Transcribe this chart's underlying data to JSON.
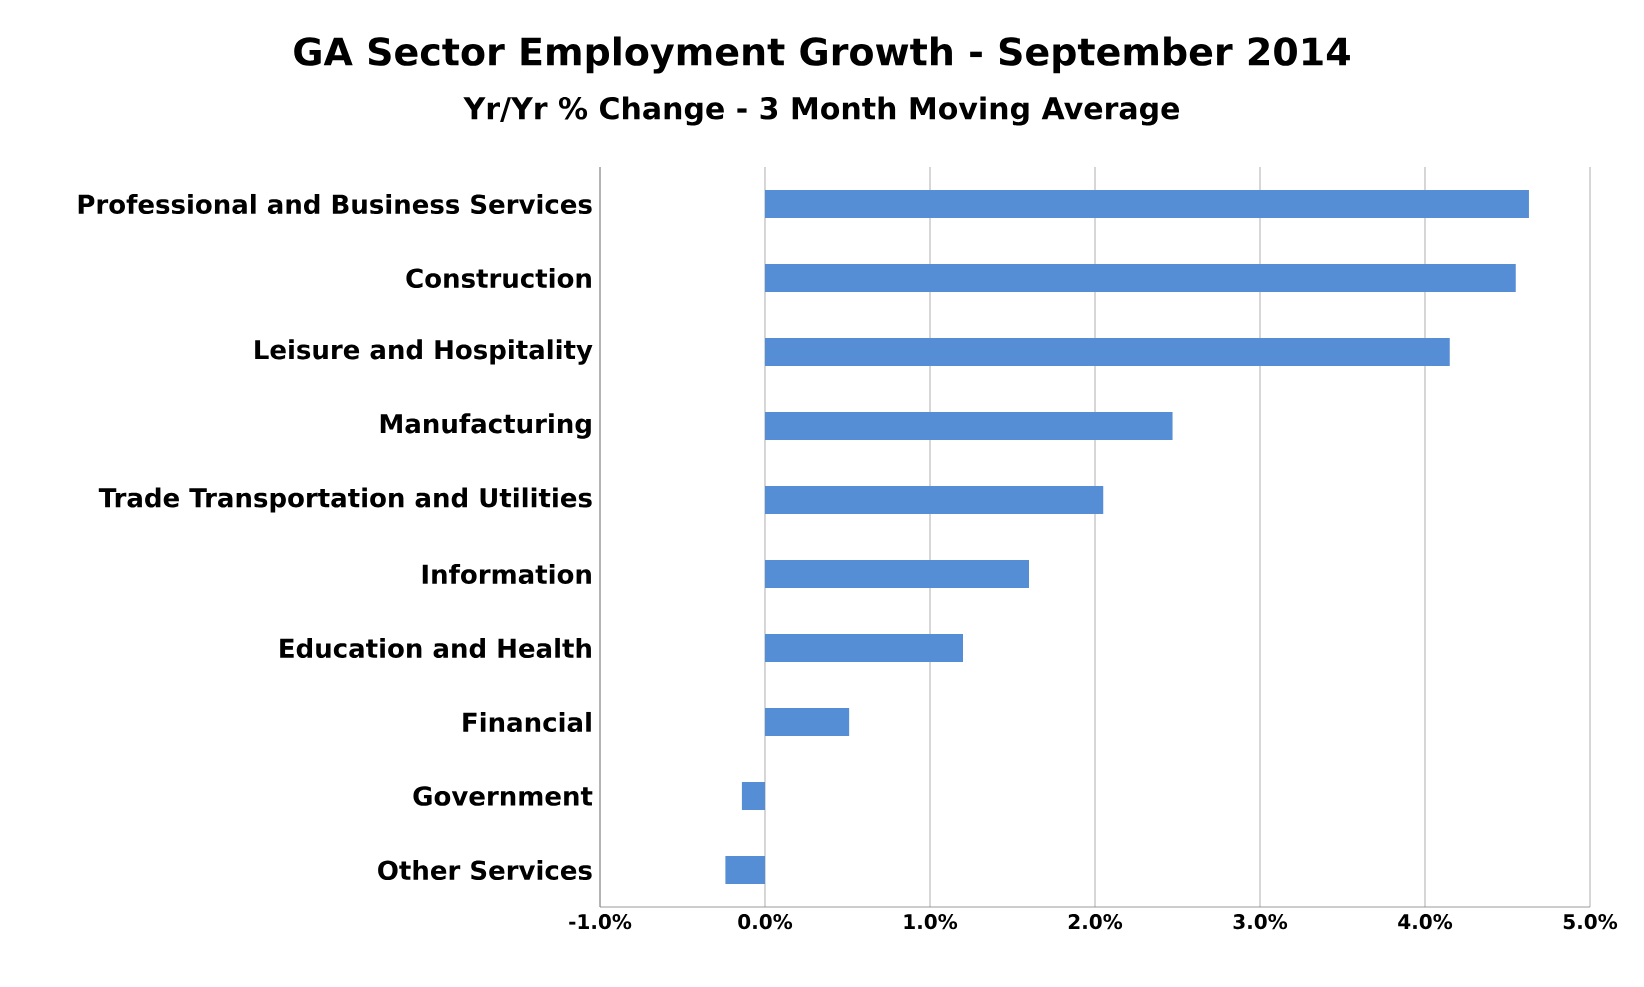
{
  "chart_data": {
    "type": "bar",
    "orientation": "horizontal",
    "title": "GA Sector Employment Growth - September 2014",
    "subtitle": "Yr/Yr % Change - 3 Month Moving Average",
    "categories": [
      "Professional and Business Services",
      "Construction",
      "Leisure and Hospitality",
      "Manufacturing",
      "Trade Transportation and Utilities",
      "Information",
      "Education and Health",
      "Financial",
      "Government",
      "Other Services"
    ],
    "values": [
      4.63,
      4.55,
      4.15,
      2.47,
      2.05,
      1.6,
      1.2,
      0.51,
      -0.14,
      -0.24
    ],
    "color": "#558ed5",
    "xlim": [
      -1,
      5
    ],
    "xticks": [
      {
        "value": -1,
        "label": "-1.0%"
      },
      {
        "value": 0,
        "label": "0.0%"
      },
      {
        "value": 1,
        "label": "1.0%"
      },
      {
        "value": 2,
        "label": "2.0%"
      },
      {
        "value": 3,
        "label": "3.0%"
      },
      {
        "value": 4,
        "label": "4.0%"
      },
      {
        "value": 5,
        "label": "5.0%"
      }
    ],
    "grid": "x"
  }
}
